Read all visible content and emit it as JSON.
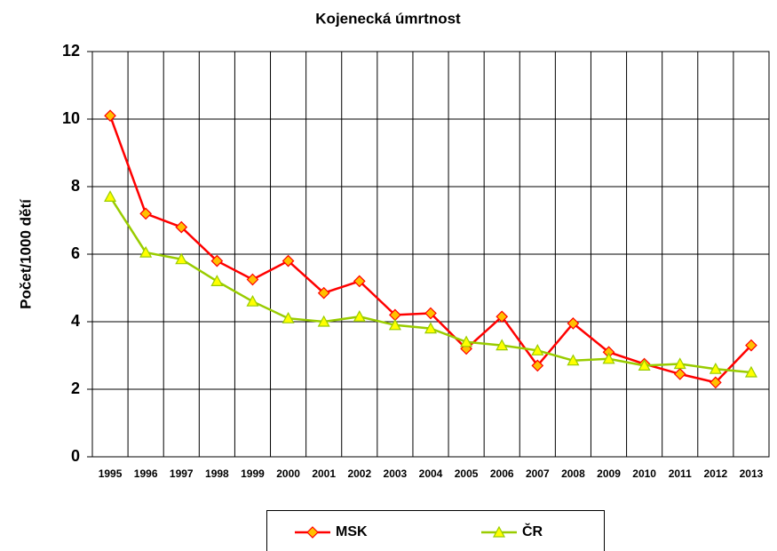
{
  "chart_data": {
    "type": "line",
    "title": "Kojenecká úmrtnost",
    "y_label": "Počet/1000 dětí",
    "categories": [
      "1995",
      "1996",
      "1997",
      "1998",
      "1999",
      "2000",
      "2001",
      "2002",
      "2003",
      "2004",
      "2005",
      "2006",
      "2007",
      "2008",
      "2009",
      "2010",
      "2011",
      "2012",
      "2013"
    ],
    "series": [
      {
        "name": "MSK",
        "color": "#ff0000",
        "marker": "diamond",
        "marker_fill": "#ffc000",
        "values": [
          10.1,
          7.2,
          6.8,
          5.8,
          5.25,
          5.8,
          4.85,
          5.2,
          4.2,
          4.25,
          3.2,
          4.15,
          2.7,
          3.95,
          3.1,
          2.75,
          2.45,
          2.2,
          3.3
        ]
      },
      {
        "name": "ČR",
        "color": "#99cc00",
        "marker": "triangle",
        "marker_fill": "#ffff00",
        "values": [
          7.7,
          6.05,
          5.85,
          5.2,
          4.6,
          4.1,
          4.0,
          4.15,
          3.9,
          3.8,
          3.4,
          3.3,
          3.15,
          2.85,
          2.9,
          2.7,
          2.75,
          2.6,
          2.5
        ]
      }
    ],
    "ylim": [
      0,
      12
    ],
    "yticks": [
      0,
      2,
      4,
      6,
      8,
      10,
      12
    ],
    "grid": true,
    "legend": "bottom"
  }
}
